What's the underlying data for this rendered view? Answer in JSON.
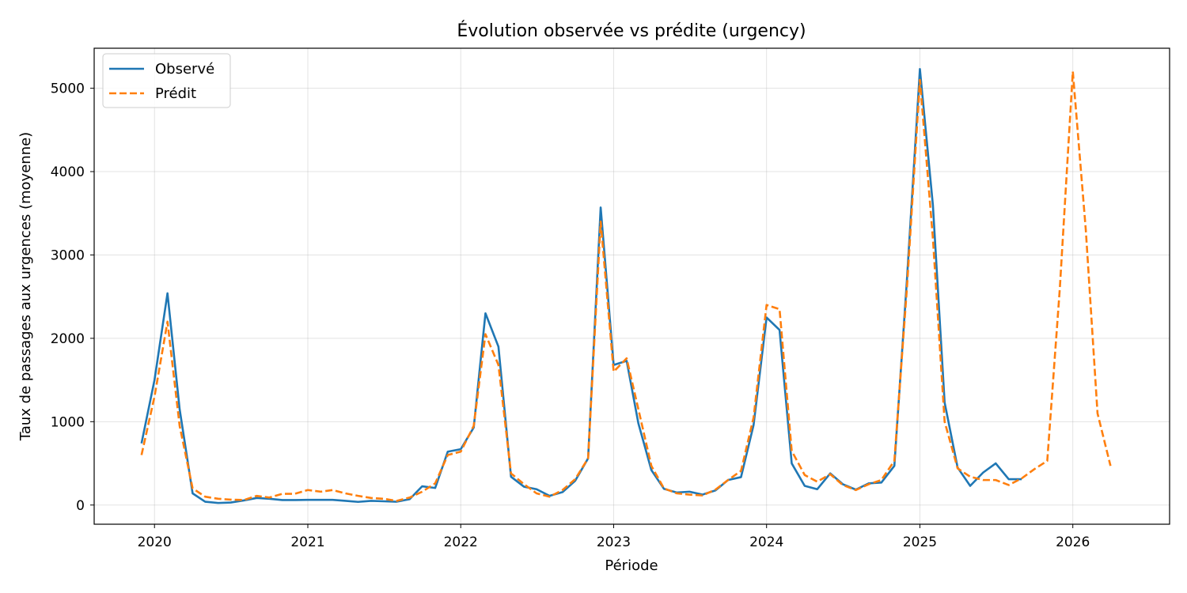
{
  "chart_data": {
    "type": "line",
    "title": "Évolution observée vs prédite (urgency)",
    "xlabel": "Période",
    "ylabel": "Taux de passages aux urgences (moyenne)",
    "xlim": [
      "2019-08-10",
      "2026-08-20"
    ],
    "ylim": [
      -230,
      5480
    ],
    "x_ticks": [
      {
        "date": "2020-01-01",
        "label": "2020"
      },
      {
        "date": "2021-01-01",
        "label": "2021"
      },
      {
        "date": "2022-01-01",
        "label": "2022"
      },
      {
        "date": "2023-01-01",
        "label": "2023"
      },
      {
        "date": "2024-01-01",
        "label": "2024"
      },
      {
        "date": "2025-01-01",
        "label": "2025"
      },
      {
        "date": "2026-01-01",
        "label": "2026"
      }
    ],
    "y_ticks": [
      0,
      1000,
      2000,
      3000,
      4000,
      5000
    ],
    "grid": true,
    "legend_position": "top-left",
    "series": [
      {
        "name": "Observé",
        "color": "#1f77b4",
        "style": "solid",
        "points": [
          [
            "2019-12-01",
            740
          ],
          [
            "2020-01-01",
            1500
          ],
          [
            "2020-02-01",
            2540
          ],
          [
            "2020-03-01",
            1150
          ],
          [
            "2020-04-01",
            140
          ],
          [
            "2020-05-01",
            40
          ],
          [
            "2020-06-01",
            25
          ],
          [
            "2020-07-01",
            30
          ],
          [
            "2020-08-01",
            55
          ],
          [
            "2020-09-01",
            85
          ],
          [
            "2020-10-01",
            75
          ],
          [
            "2020-11-01",
            60
          ],
          [
            "2020-12-01",
            60
          ],
          [
            "2021-01-01",
            62
          ],
          [
            "2021-02-01",
            62
          ],
          [
            "2021-03-01",
            62
          ],
          [
            "2021-04-01",
            50
          ],
          [
            "2021-05-01",
            38
          ],
          [
            "2021-06-01",
            50
          ],
          [
            "2021-07-01",
            45
          ],
          [
            "2021-08-01",
            40
          ],
          [
            "2021-09-01",
            70
          ],
          [
            "2021-10-01",
            225
          ],
          [
            "2021-11-01",
            205
          ],
          [
            "2021-12-01",
            640
          ],
          [
            "2022-01-01",
            670
          ],
          [
            "2022-02-01",
            930
          ],
          [
            "2022-03-01",
            2300
          ],
          [
            "2022-04-01",
            1900
          ],
          [
            "2022-05-01",
            340
          ],
          [
            "2022-06-01",
            220
          ],
          [
            "2022-07-01",
            190
          ],
          [
            "2022-08-01",
            110
          ],
          [
            "2022-09-01",
            155
          ],
          [
            "2022-10-01",
            290
          ],
          [
            "2022-11-01",
            560
          ],
          [
            "2022-12-01",
            3570
          ],
          [
            "2023-01-01",
            1680
          ],
          [
            "2023-02-01",
            1730
          ],
          [
            "2023-03-01",
            980
          ],
          [
            "2023-04-01",
            420
          ],
          [
            "2023-05-01",
            195
          ],
          [
            "2023-06-01",
            150
          ],
          [
            "2023-07-01",
            160
          ],
          [
            "2023-08-01",
            125
          ],
          [
            "2023-09-01",
            175
          ],
          [
            "2023-10-01",
            300
          ],
          [
            "2023-11-01",
            335
          ],
          [
            "2023-12-01",
            960
          ],
          [
            "2024-01-01",
            2250
          ],
          [
            "2024-02-01",
            2100
          ],
          [
            "2024-03-01",
            500
          ],
          [
            "2024-04-01",
            230
          ],
          [
            "2024-05-01",
            190
          ],
          [
            "2024-06-01",
            380
          ],
          [
            "2024-07-01",
            250
          ],
          [
            "2024-08-01",
            185
          ],
          [
            "2024-09-01",
            260
          ],
          [
            "2024-10-01",
            270
          ],
          [
            "2024-11-01",
            470
          ],
          [
            "2024-12-01",
            2700
          ],
          [
            "2025-01-01",
            5230
          ],
          [
            "2025-02-01",
            3600
          ],
          [
            "2025-03-01",
            1230
          ],
          [
            "2025-04-01",
            450
          ],
          [
            "2025-05-01",
            230
          ],
          [
            "2025-06-01",
            390
          ],
          [
            "2025-07-01",
            500
          ],
          [
            "2025-08-01",
            310
          ],
          [
            "2025-09-01",
            310
          ]
        ]
      },
      {
        "name": "Prédit",
        "color": "#ff7f0e",
        "style": "dashed",
        "points": [
          [
            "2019-12-01",
            600
          ],
          [
            "2020-01-01",
            1300
          ],
          [
            "2020-02-01",
            2200
          ],
          [
            "2020-03-01",
            950
          ],
          [
            "2020-04-01",
            200
          ],
          [
            "2020-05-01",
            100
          ],
          [
            "2020-06-01",
            75
          ],
          [
            "2020-07-01",
            65
          ],
          [
            "2020-08-01",
            60
          ],
          [
            "2020-09-01",
            110
          ],
          [
            "2020-10-01",
            90
          ],
          [
            "2020-11-01",
            135
          ],
          [
            "2020-12-01",
            135
          ],
          [
            "2021-01-01",
            180
          ],
          [
            "2021-02-01",
            160
          ],
          [
            "2021-03-01",
            180
          ],
          [
            "2021-04-01",
            140
          ],
          [
            "2021-05-01",
            110
          ],
          [
            "2021-06-01",
            85
          ],
          [
            "2021-07-01",
            75
          ],
          [
            "2021-08-01",
            50
          ],
          [
            "2021-09-01",
            90
          ],
          [
            "2021-10-01",
            160
          ],
          [
            "2021-11-01",
            260
          ],
          [
            "2021-12-01",
            600
          ],
          [
            "2022-01-01",
            640
          ],
          [
            "2022-02-01",
            950
          ],
          [
            "2022-03-01",
            2050
          ],
          [
            "2022-04-01",
            1680
          ],
          [
            "2022-05-01",
            380
          ],
          [
            "2022-06-01",
            250
          ],
          [
            "2022-07-01",
            140
          ],
          [
            "2022-08-01",
            100
          ],
          [
            "2022-09-01",
            180
          ],
          [
            "2022-10-01",
            310
          ],
          [
            "2022-11-01",
            560
          ],
          [
            "2022-12-01",
            3400
          ],
          [
            "2023-01-01",
            1600
          ],
          [
            "2023-02-01",
            1760
          ],
          [
            "2023-03-01",
            1150
          ],
          [
            "2023-04-01",
            470
          ],
          [
            "2023-05-01",
            200
          ],
          [
            "2023-06-01",
            140
          ],
          [
            "2023-07-01",
            125
          ],
          [
            "2023-08-01",
            115
          ],
          [
            "2023-09-01",
            185
          ],
          [
            "2023-10-01",
            300
          ],
          [
            "2023-11-01",
            410
          ],
          [
            "2023-12-01",
            1050
          ],
          [
            "2024-01-01",
            2400
          ],
          [
            "2024-02-01",
            2350
          ],
          [
            "2024-03-01",
            650
          ],
          [
            "2024-04-01",
            360
          ],
          [
            "2024-05-01",
            280
          ],
          [
            "2024-06-01",
            370
          ],
          [
            "2024-07-01",
            240
          ],
          [
            "2024-08-01",
            180
          ],
          [
            "2024-09-01",
            250
          ],
          [
            "2024-10-01",
            300
          ],
          [
            "2024-11-01",
            530
          ],
          [
            "2024-12-01",
            2600
          ],
          [
            "2025-01-01",
            5100
          ],
          [
            "2025-02-01",
            3200
          ],
          [
            "2025-03-01",
            1000
          ],
          [
            "2025-04-01",
            440
          ],
          [
            "2025-05-01",
            340
          ],
          [
            "2025-06-01",
            300
          ],
          [
            "2025-07-01",
            300
          ],
          [
            "2025-08-01",
            240
          ],
          [
            "2025-09-01",
            320
          ],
          [
            "2025-10-01",
            430
          ],
          [
            "2025-11-01",
            530
          ],
          [
            "2025-12-01",
            2600
          ],
          [
            "2026-01-01",
            5200
          ],
          [
            "2026-02-01",
            3300
          ],
          [
            "2026-03-01",
            1100
          ],
          [
            "2026-04-01",
            470
          ]
        ]
      }
    ]
  }
}
